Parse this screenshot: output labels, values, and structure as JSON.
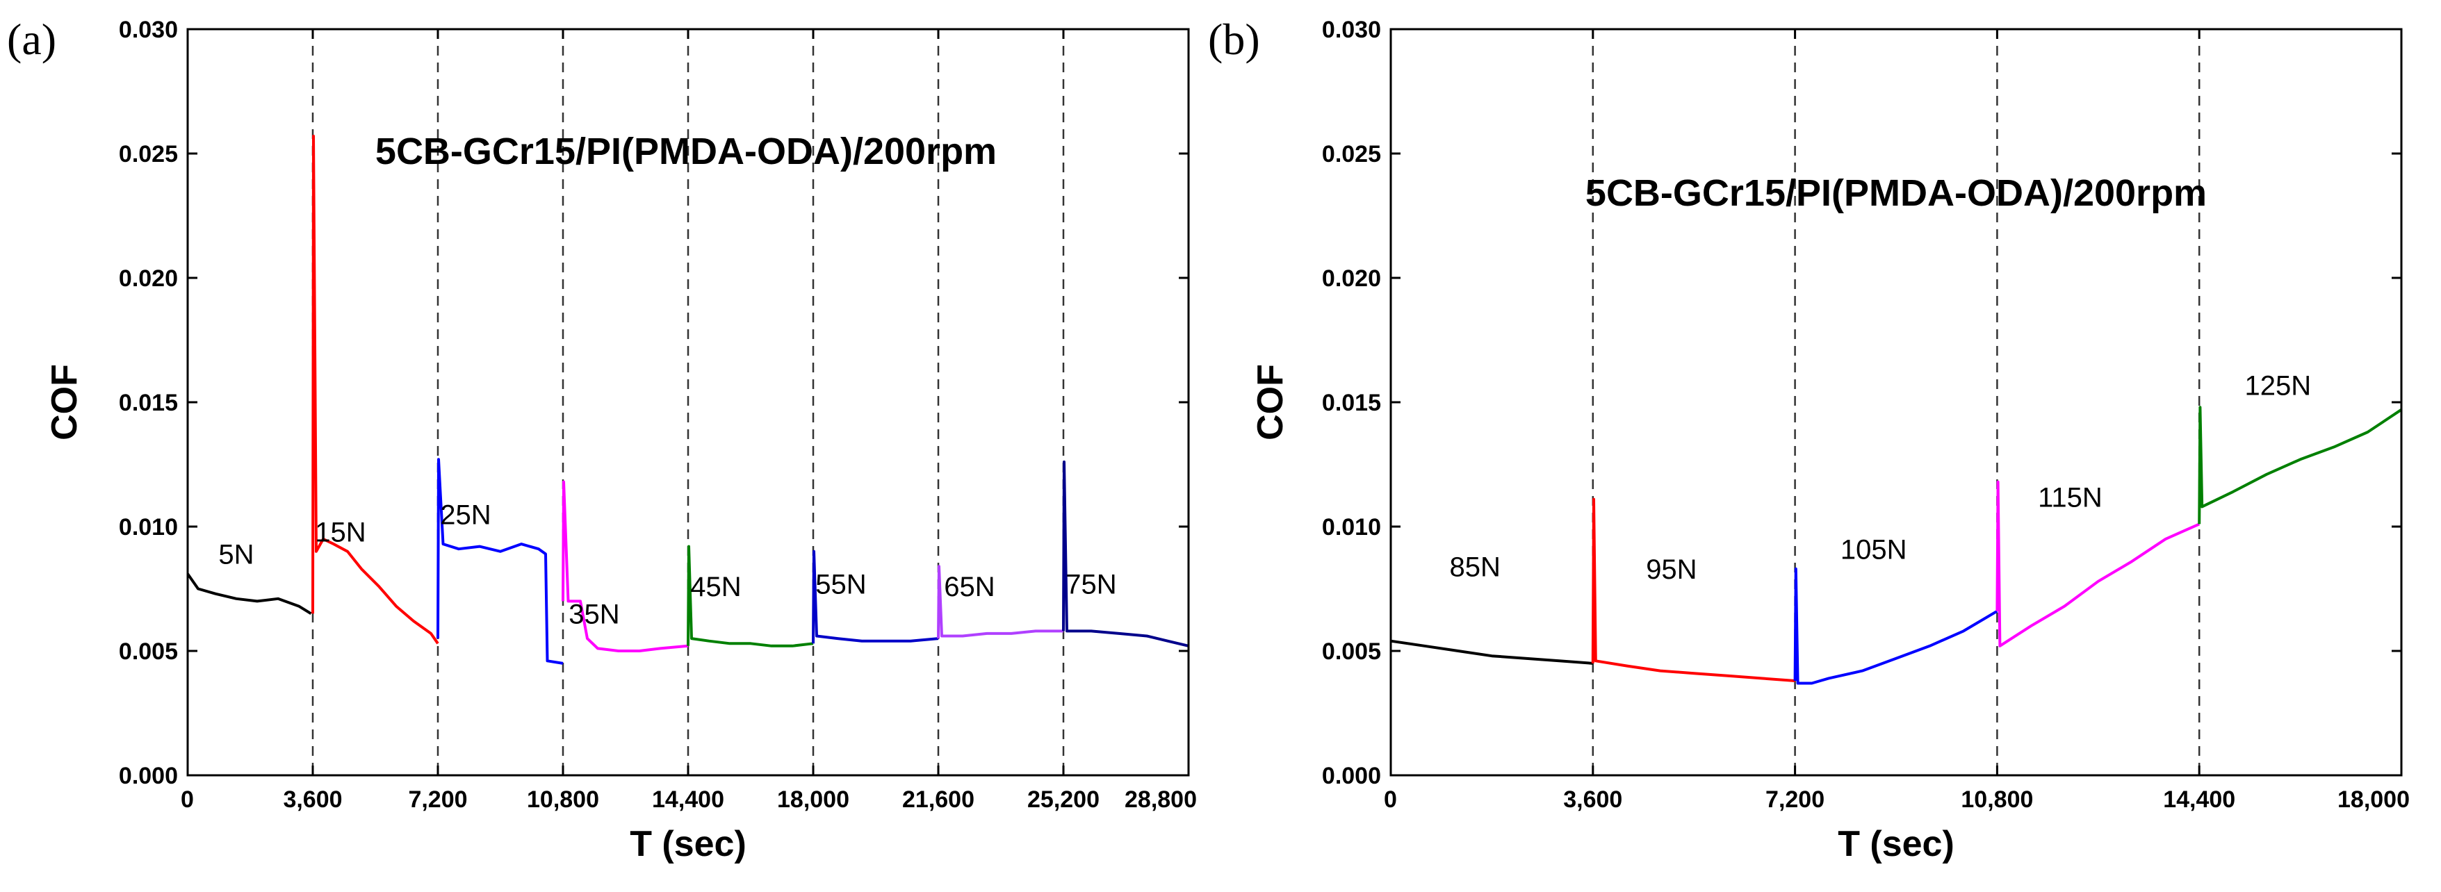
{
  "chart_data": [
    {
      "panel": "(a)",
      "type": "line",
      "title": "5CB-GCr15/PI(PMDA-ODA)/200rpm",
      "xlabel": "T (sec)",
      "ylabel": "COF",
      "xlim": [
        0,
        28800
      ],
      "ylim": [
        0,
        0.03
      ],
      "xticks": [
        0,
        3600,
        7200,
        10800,
        14400,
        18000,
        21600,
        25200,
        28800
      ],
      "xtick_labels": [
        "0",
        "3,600",
        "7,200",
        "10,800",
        "14,400",
        "18,000",
        "21,600",
        "25,200",
        "28,800"
      ],
      "yticks": [
        0,
        0.005,
        0.01,
        0.015,
        0.02,
        0.025,
        0.03
      ],
      "ytick_labels": [
        "0.000",
        "0.005",
        "0.010",
        "0.015",
        "0.020",
        "0.025",
        "0.030"
      ],
      "dividers": [
        3600,
        7200,
        10800,
        14400,
        18000,
        21600,
        25200
      ],
      "series": [
        {
          "name": "5N",
          "color": "#000000",
          "label_at": [
            1400,
            0.0085
          ],
          "x": [
            0,
            300,
            800,
            1400,
            2000,
            2600,
            3200,
            3550
          ],
          "y": [
            0.0081,
            0.0075,
            0.0073,
            0.0071,
            0.007,
            0.0071,
            0.0068,
            0.0065
          ]
        },
        {
          "name": "15N",
          "color": "#ff0000",
          "label_at": [
            4400,
            0.0094
          ],
          "x": [
            3600,
            3620,
            3700,
            3900,
            4200,
            4600,
            5000,
            5500,
            6000,
            6500,
            7000,
            7200
          ],
          "y": [
            0.0065,
            0.0257,
            0.009,
            0.0095,
            0.0093,
            0.009,
            0.0083,
            0.0076,
            0.0068,
            0.0062,
            0.0057,
            0.0053
          ]
        },
        {
          "name": "25N",
          "color": "#0000ff",
          "label_at": [
            8000,
            0.0101
          ],
          "x": [
            7200,
            7220,
            7350,
            7800,
            8400,
            9000,
            9600,
            10100,
            10300,
            10350,
            10800
          ],
          "y": [
            0.0055,
            0.0127,
            0.0093,
            0.0091,
            0.0092,
            0.009,
            0.0093,
            0.0091,
            0.0089,
            0.0046,
            0.0045
          ]
        },
        {
          "name": "35N",
          "color": "#ff00ff",
          "label_at": [
            11700,
            0.0061
          ],
          "x": [
            10800,
            10820,
            10950,
            11300,
            11500,
            11800,
            12400,
            13000,
            13600,
            14400
          ],
          "y": [
            0.007,
            0.0118,
            0.007,
            0.007,
            0.0055,
            0.0051,
            0.005,
            0.005,
            0.0051,
            0.0052
          ]
        },
        {
          "name": "45N",
          "color": "#008000",
          "label_at": [
            15200,
            0.0072
          ],
          "x": [
            14400,
            14420,
            14500,
            15000,
            15600,
            16200,
            16800,
            17400,
            18000
          ],
          "y": [
            0.0052,
            0.0092,
            0.0055,
            0.0054,
            0.0053,
            0.0053,
            0.0052,
            0.0052,
            0.0053
          ]
        },
        {
          "name": "55N",
          "color": "#0000c8",
          "label_at": [
            18800,
            0.0073
          ],
          "x": [
            18000,
            18020,
            18100,
            18700,
            19400,
            20100,
            20800,
            21600
          ],
          "y": [
            0.0053,
            0.009,
            0.0056,
            0.0055,
            0.0054,
            0.0054,
            0.0054,
            0.0055
          ]
        },
        {
          "name": "65N",
          "color": "#b040ff",
          "label_at": [
            22500,
            0.0072
          ],
          "x": [
            21600,
            21620,
            21700,
            22300,
            23000,
            23700,
            24400,
            25200
          ],
          "y": [
            0.0055,
            0.0084,
            0.0056,
            0.0056,
            0.0057,
            0.0057,
            0.0058,
            0.0058
          ]
        },
        {
          "name": "75N",
          "color": "#00008b",
          "label_at": [
            26000,
            0.0073
          ],
          "x": [
            25200,
            25220,
            25300,
            26000,
            26800,
            27600,
            28200,
            28800
          ],
          "y": [
            0.0058,
            0.0126,
            0.0058,
            0.0058,
            0.0057,
            0.0056,
            0.0054,
            0.0052
          ]
        }
      ]
    },
    {
      "panel": "(b)",
      "type": "line",
      "title": "5CB-GCr15/PI(PMDA-ODA)/200rpm",
      "xlabel": "T (sec)",
      "ylabel": "COF",
      "xlim": [
        0,
        18000
      ],
      "ylim": [
        0,
        0.03
      ],
      "xticks": [
        0,
        3600,
        7200,
        10800,
        14400,
        18000
      ],
      "xtick_labels": [
        "0",
        "3,600",
        "7,200",
        "10,800",
        "14,400",
        "18,000"
      ],
      "yticks": [
        0,
        0.005,
        0.01,
        0.015,
        0.02,
        0.025,
        0.03
      ],
      "ytick_labels": [
        "0.000",
        "0.005",
        "0.010",
        "0.015",
        "0.020",
        "0.025",
        "0.030"
      ],
      "dividers": [
        3600,
        7200,
        10800,
        14400
      ],
      "series": [
        {
          "name": "85N",
          "color": "#000000",
          "label_at": [
            1500,
            0.008
          ],
          "x": [
            0,
            600,
            1200,
            1800,
            2400,
            3000,
            3600
          ],
          "y": [
            0.0054,
            0.0052,
            0.005,
            0.0048,
            0.0047,
            0.0046,
            0.0045
          ]
        },
        {
          "name": "95N",
          "color": "#ff0000",
          "label_at": [
            5000,
            0.0079
          ],
          "x": [
            3600,
            3615,
            3650,
            4200,
            4800,
            5400,
            6000,
            6600,
            7200
          ],
          "y": [
            0.0045,
            0.0111,
            0.0046,
            0.0044,
            0.0042,
            0.0041,
            0.004,
            0.0039,
            0.0038
          ]
        },
        {
          "name": "105N",
          "color": "#0000ff",
          "label_at": [
            8600,
            0.0087
          ],
          "x": [
            7200,
            7215,
            7250,
            7500,
            7800,
            8400,
            9000,
            9600,
            10200,
            10800
          ],
          "y": [
            0.0038,
            0.0083,
            0.0037,
            0.0037,
            0.0039,
            0.0042,
            0.0047,
            0.0052,
            0.0058,
            0.0066
          ]
        },
        {
          "name": "115N",
          "color": "#ff00ff",
          "label_at": [
            12100,
            0.0108
          ],
          "x": [
            10800,
            10815,
            10850,
            11400,
            12000,
            12600,
            13200,
            13800,
            14400
          ],
          "y": [
            0.0066,
            0.0118,
            0.0052,
            0.006,
            0.0068,
            0.0078,
            0.0086,
            0.0095,
            0.0101
          ]
        },
        {
          "name": "125N",
          "color": "#008000",
          "label_at": [
            15800,
            0.0153
          ],
          "x": [
            14400,
            14415,
            14450,
            15000,
            15600,
            16200,
            16800,
            17400,
            18000
          ],
          "y": [
            0.0101,
            0.0148,
            0.0108,
            0.0114,
            0.0121,
            0.0127,
            0.0132,
            0.0138,
            0.0147
          ]
        }
      ]
    }
  ]
}
